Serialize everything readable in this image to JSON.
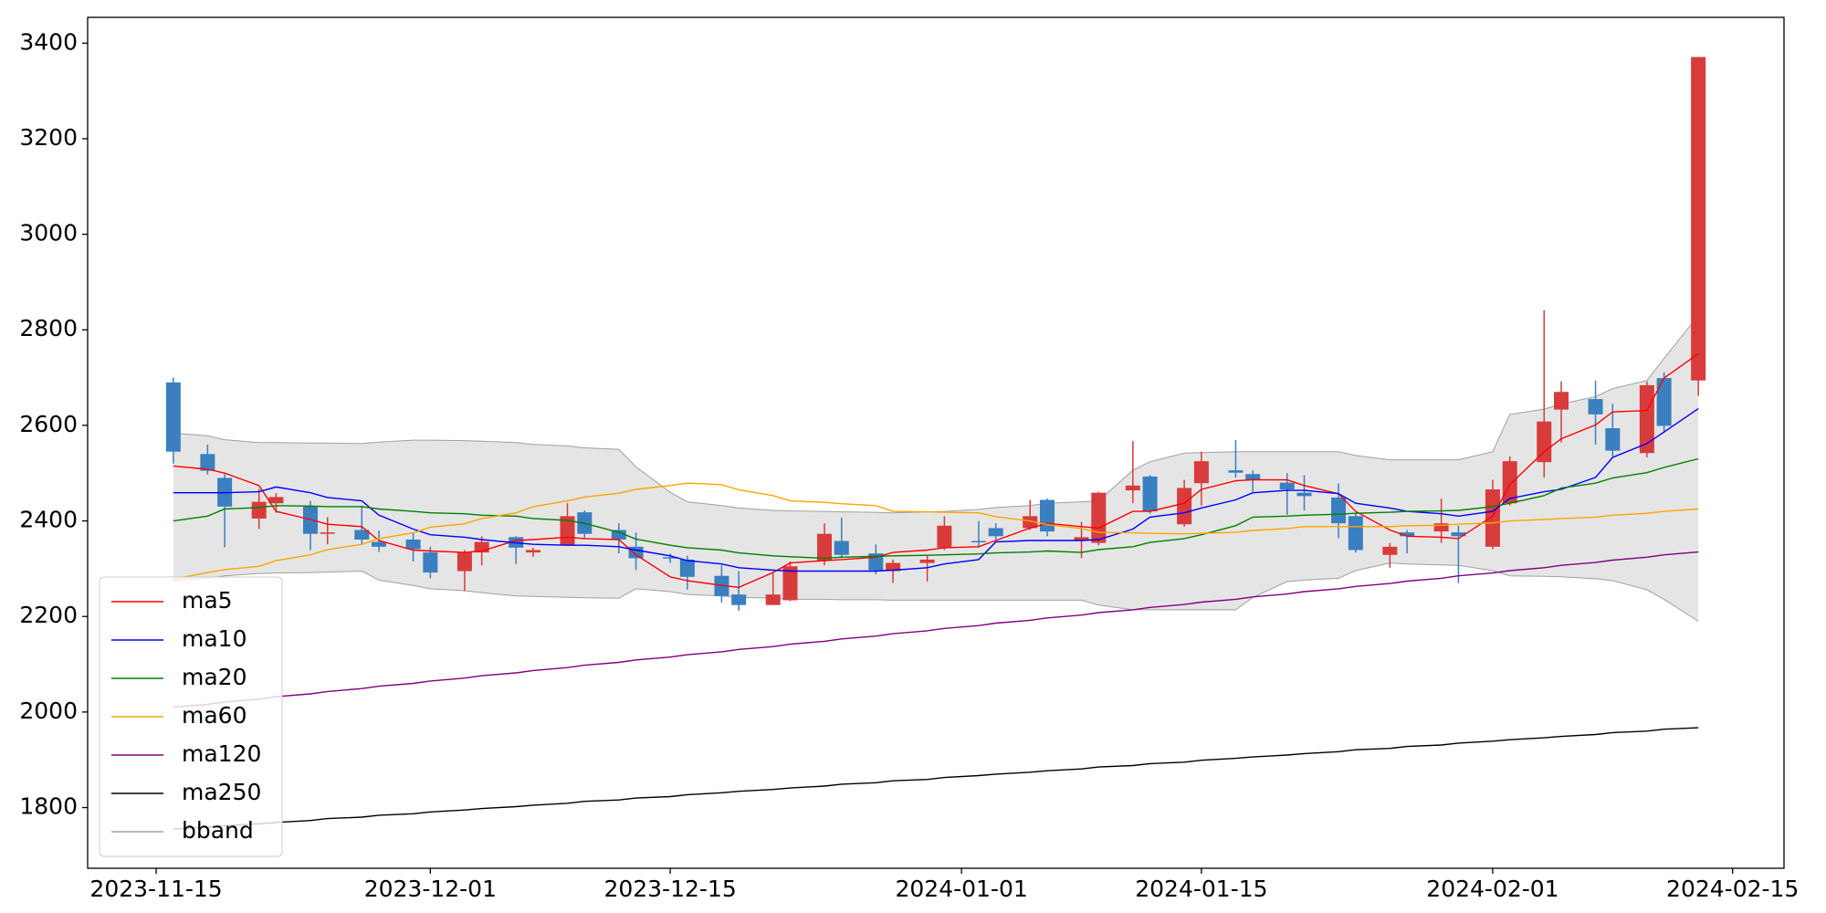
{
  "chart_data": {
    "type": "candlestick",
    "x": [
      "2023-11-16",
      "2023-11-18",
      "2023-11-19",
      "2023-11-21",
      "2023-11-22",
      "2023-11-24",
      "2023-11-25",
      "2023-11-27",
      "2023-11-28",
      "2023-11-30",
      "2023-12-01",
      "2023-12-03",
      "2023-12-04",
      "2023-12-06",
      "2023-12-07",
      "2023-12-09",
      "2023-12-10",
      "2023-12-12",
      "2023-12-13",
      "2023-12-15",
      "2023-12-16",
      "2023-12-18",
      "2023-12-19",
      "2023-12-21",
      "2023-12-22",
      "2023-12-24",
      "2023-12-25",
      "2023-12-27",
      "2023-12-28",
      "2023-12-30",
      "2023-12-31",
      "2024-01-02",
      "2024-01-03",
      "2024-01-05",
      "2024-01-06",
      "2024-01-08",
      "2024-01-09",
      "2024-01-11",
      "2024-01-12",
      "2024-01-14",
      "2024-01-15",
      "2024-01-17",
      "2024-01-18",
      "2024-01-20",
      "2024-01-21",
      "2024-01-23",
      "2024-01-24",
      "2024-01-26",
      "2024-01-27",
      "2024-01-29",
      "2024-01-30",
      "2024-02-01",
      "2024-02-02",
      "2024-02-04",
      "2024-02-05",
      "2024-02-07",
      "2024-02-08",
      "2024-02-10",
      "2024-02-11",
      "2024-02-13"
    ],
    "open": [
      2690,
      2540,
      2490,
      2405,
      2437,
      2430,
      2373,
      2381,
      2356,
      2361,
      2334,
      2295,
      2334,
      2366,
      2334,
      2349,
      2418,
      2381,
      2346,
      2324,
      2319,
      2285,
      2246,
      2224,
      2234,
      2317,
      2358,
      2332,
      2295,
      2312,
      2344,
      2358,
      2385,
      2385,
      2444,
      2359,
      2354,
      2464,
      2493,
      2393,
      2479,
      2506,
      2498,
      2480,
      2459,
      2449,
      2410,
      2329,
      2376,
      2378,
      2376,
      2346,
      2437,
      2523,
      2633,
      2655,
      2594,
      2542,
      2699,
      2694
    ],
    "high": [
      2700,
      2560,
      2498,
      2467,
      2458,
      2442,
      2408,
      2432,
      2380,
      2376,
      2346,
      2339,
      2368,
      2368,
      2344,
      2437,
      2422,
      2395,
      2376,
      2332,
      2327,
      2307,
      2295,
      2290,
      2315,
      2395,
      2407,
      2351,
      2319,
      2327,
      2410,
      2400,
      2395,
      2444,
      2447,
      2398,
      2461,
      2567,
      2496,
      2486,
      2545,
      2569,
      2506,
      2500,
      2496,
      2478,
      2417,
      2354,
      2381,
      2447,
      2390,
      2486,
      2535,
      2841,
      2692,
      2694,
      2645,
      2692,
      2711,
      3371
    ],
    "low": [
      2520,
      2497,
      2345,
      2383,
      2417,
      2339,
      2351,
      2351,
      2335,
      2315,
      2280,
      2253,
      2307,
      2310,
      2325,
      2349,
      2363,
      2332,
      2297,
      2312,
      2256,
      2229,
      2212,
      2224,
      2232,
      2307,
      2322,
      2288,
      2270,
      2273,
      2339,
      2344,
      2361,
      2381,
      2368,
      2322,
      2349,
      2437,
      2415,
      2388,
      2432,
      2491,
      2461,
      2413,
      2422,
      2364,
      2334,
      2302,
      2332,
      2354,
      2270,
      2341,
      2432,
      2491,
      2564,
      2560,
      2535,
      2533,
      2584,
      2662
    ],
    "close": [
      2545,
      2505,
      2430,
      2440,
      2450,
      2373,
      2376,
      2361,
      2346,
      2341,
      2292,
      2334,
      2356,
      2344,
      2339,
      2410,
      2373,
      2361,
      2322,
      2322,
      2283,
      2243,
      2224,
      2246,
      2305,
      2373,
      2329,
      2297,
      2312,
      2319,
      2390,
      2356,
      2368,
      2410,
      2378,
      2366,
      2459,
      2474,
      2420,
      2469,
      2525,
      2501,
      2486,
      2466,
      2452,
      2395,
      2339,
      2346,
      2368,
      2395,
      2368,
      2466,
      2525,
      2608,
      2670,
      2623,
      2547,
      2684,
      2599,
      3371
    ],
    "up_color": "#d83b3b",
    "down_color": "#3a7fbf",
    "series": [
      {
        "name": "ma5",
        "color": "#ff0000",
        "values": [
          2515,
          2508,
          2500,
          2474,
          2420,
          2403,
          2393,
          2388,
          2359,
          2339,
          2337,
          2334,
          2337,
          2359,
          2361,
          2366,
          2363,
          2361,
          2329,
          2283,
          2275,
          2265,
          2261,
          2292,
          2312,
          2317,
          2319,
          2324,
          2334,
          2339,
          2344,
          2346,
          2359,
          2385,
          2395,
          2388,
          2385,
          2420,
          2420,
          2437,
          2466,
          2484,
          2486,
          2486,
          2474,
          2457,
          2420,
          2381,
          2368,
          2366,
          2363,
          2410,
          2476,
          2545,
          2572,
          2601,
          2628,
          2631,
          2699,
          2750
        ]
      },
      {
        "name": "ma10",
        "color": "#0000ff",
        "values": [
          2459,
          2459,
          2459,
          2461,
          2471,
          2459,
          2449,
          2442,
          2412,
          2383,
          2371,
          2366,
          2361,
          2354,
          2351,
          2349,
          2349,
          2346,
          2339,
          2327,
          2317,
          2310,
          2302,
          2297,
          2295,
          2295,
          2295,
          2295,
          2297,
          2302,
          2310,
          2319,
          2356,
          2359,
          2359,
          2359,
          2361,
          2383,
          2408,
          2417,
          2427,
          2444,
          2459,
          2464,
          2464,
          2457,
          2437,
          2427,
          2420,
          2415,
          2410,
          2420,
          2447,
          2461,
          2466,
          2491,
          2533,
          2562,
          2586,
          2635
        ]
      },
      {
        "name": "ma20",
        "color": "#008000",
        "values": [
          2400,
          2410,
          2425,
          2428,
          2432,
          2431,
          2430,
          2430,
          2425,
          2420,
          2417,
          2415,
          2412,
          2410,
          2405,
          2401,
          2395,
          2376,
          2362,
          2349,
          2344,
          2339,
          2333,
          2327,
          2325,
          2322,
          2324,
          2326,
          2327,
          2328,
          2329,
          2331,
          2333,
          2335,
          2337,
          2334,
          2340,
          2346,
          2355,
          2363,
          2371,
          2390,
          2408,
          2410,
          2412,
          2414,
          2416,
          2418,
          2420,
          2421,
          2422,
          2430,
          2437,
          2453,
          2469,
          2479,
          2490,
          2501,
          2512,
          2530
        ]
      },
      {
        "name": "ma60",
        "color": "#ffa500",
        "values": [
          2278,
          2292,
          2298,
          2305,
          2317,
          2329,
          2340,
          2351,
          2363,
          2375,
          2387,
          2394,
          2405,
          2417,
          2430,
          2442,
          2450,
          2458,
          2466,
          2474,
          2479,
          2476,
          2465,
          2453,
          2442,
          2439,
          2436,
          2432,
          2420,
          2419,
          2418,
          2417,
          2409,
          2400,
          2392,
          2384,
          2376,
          2375,
          2374,
          2373,
          2374,
          2376,
          2380,
          2384,
          2388,
          2388,
          2388,
          2388,
          2390,
          2391,
          2393,
          2396,
          2400,
          2403,
          2405,
          2408,
          2412,
          2416,
          2420,
          2425
        ]
      },
      {
        "name": "ma120",
        "color": "#800080",
        "values": [
          2010,
          2016,
          2021,
          2027,
          2032,
          2038,
          2043,
          2049,
          2054,
          2060,
          2065,
          2071,
          2076,
          2082,
          2087,
          2093,
          2098,
          2104,
          2109,
          2115,
          2120,
          2126,
          2131,
          2137,
          2142,
          2148,
          2153,
          2159,
          2164,
          2170,
          2175,
          2181,
          2186,
          2192,
          2197,
          2203,
          2208,
          2214,
          2219,
          2225,
          2230,
          2236,
          2241,
          2247,
          2252,
          2258,
          2263,
          2269,
          2274,
          2280,
          2285,
          2291,
          2296,
          2302,
          2307,
          2313,
          2318,
          2324,
          2329,
          2335
        ]
      },
      {
        "name": "ma250",
        "color": "#000000",
        "values": [
          1755,
          1759,
          1762,
          1766,
          1769,
          1773,
          1777,
          1780,
          1784,
          1787,
          1791,
          1795,
          1798,
          1802,
          1805,
          1809,
          1813,
          1816,
          1820,
          1823,
          1827,
          1831,
          1834,
          1838,
          1841,
          1845,
          1849,
          1852,
          1856,
          1859,
          1863,
          1867,
          1870,
          1874,
          1877,
          1881,
          1885,
          1888,
          1892,
          1895,
          1899,
          1903,
          1906,
          1910,
          1913,
          1917,
          1921,
          1924,
          1928,
          1931,
          1935,
          1939,
          1942,
          1946,
          1949,
          1953,
          1957,
          1960,
          1964,
          1967
        ]
      },
      {
        "name": "bband",
        "color": "#a0a0a0",
        "fill": "#e5e5e5",
        "upper": [
          2584,
          2578,
          2570,
          2564,
          2564,
          2563,
          2563,
          2562,
          2565,
          2569,
          2569,
          2568,
          2567,
          2564,
          2560,
          2557,
          2553,
          2550,
          2513,
          2460,
          2440,
          2432,
          2427,
          2422,
          2421,
          2420,
          2419,
          2418,
          2417,
          2419,
          2420,
          2424,
          2428,
          2432,
          2437,
          2440,
          2442,
          2506,
          2524,
          2542,
          2543,
          2545,
          2545,
          2545,
          2545,
          2545,
          2537,
          2528,
          2528,
          2528,
          2528,
          2545,
          2623,
          2634,
          2645,
          2660,
          2677,
          2694,
          2740,
          2830
        ],
        "lower": [
          2275,
          2280,
          2285,
          2290,
          2291,
          2292,
          2293,
          2295,
          2276,
          2265,
          2258,
          2254,
          2250,
          2243,
          2242,
          2240,
          2239,
          2238,
          2258,
          2252,
          2246,
          2243,
          2240,
          2238,
          2236,
          2236,
          2235,
          2235,
          2234,
          2234,
          2234,
          2234,
          2234,
          2234,
          2234,
          2234,
          2224,
          2214,
          2214,
          2214,
          2214,
          2214,
          2240,
          2273,
          2276,
          2280,
          2296,
          2312,
          2310,
          2308,
          2307,
          2296,
          2285,
          2284,
          2283,
          2279,
          2275,
          2256,
          2236,
          2190
        ]
      }
    ],
    "xlim": [
      "2023-11-11",
      "2024-02-18"
    ],
    "xticks": [
      "2023-11-15",
      "2023-12-01",
      "2023-12-15",
      "2024-01-01",
      "2024-01-15",
      "2024-02-01",
      "2024-02-15"
    ],
    "ylim": [
      1673,
      3454
    ],
    "yticks": [
      1800,
      2000,
      2200,
      2400,
      2600,
      2800,
      3000,
      3200,
      3400
    ],
    "legend": "lower left"
  }
}
